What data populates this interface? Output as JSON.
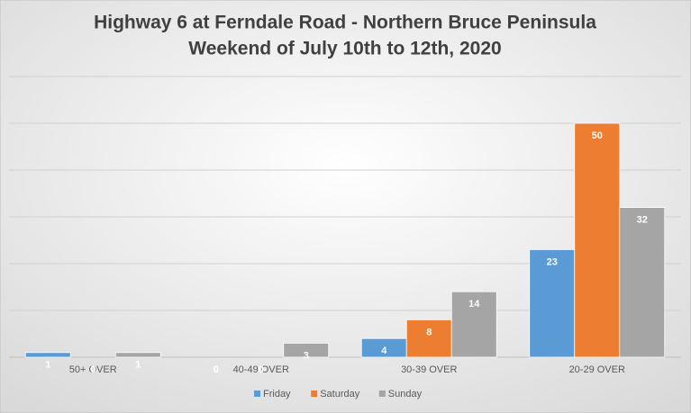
{
  "chart_data": {
    "type": "bar",
    "title": "Highway 6 at Ferndale Road - Northern Bruce Peninsula",
    "subtitle": "Weekend of July 10th to 12th, 2020",
    "categories": [
      "50+ OVER",
      "40-49 OVER",
      "30-39 OVER",
      "20-29 OVER"
    ],
    "series": [
      {
        "name": "Friday",
        "color": "#5b9bd5",
        "values": [
          1,
          0,
          4,
          23
        ]
      },
      {
        "name": "Saturday",
        "color": "#ed7d31",
        "values": [
          0,
          0,
          8,
          50
        ]
      },
      {
        "name": "Sunday",
        "color": "#a5a5a5",
        "values": [
          1,
          3,
          14,
          32
        ]
      }
    ],
    "ylim": [
      0,
      60
    ],
    "yticks": [
      0,
      10,
      20,
      30,
      40,
      50,
      60
    ],
    "grid": true,
    "legend": "bottom"
  }
}
